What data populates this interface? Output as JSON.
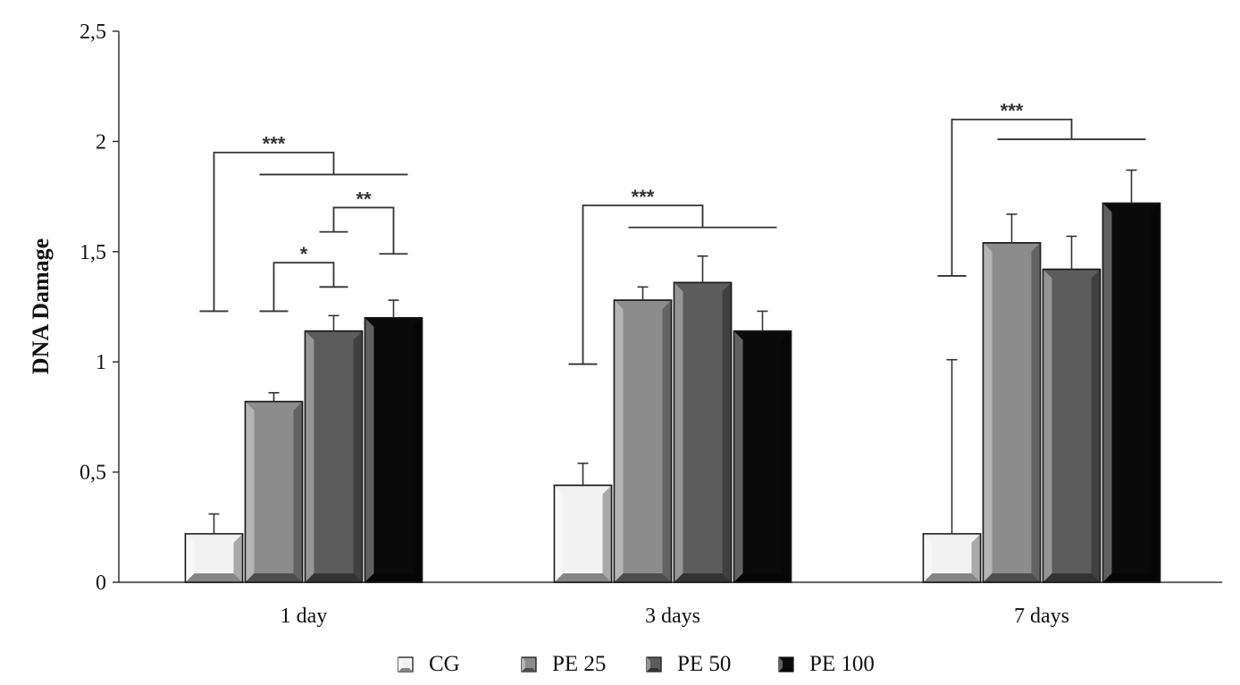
{
  "chart_data": {
    "type": "bar",
    "title": "",
    "xlabel": "",
    "ylabel": "DNA Damage",
    "ylim": [
      0,
      2.5
    ],
    "yticks": [
      {
        "value": 0,
        "label": "0"
      },
      {
        "value": 0.5,
        "label": "0,5"
      },
      {
        "value": 1,
        "label": "1"
      },
      {
        "value": 1.5,
        "label": "1,5"
      },
      {
        "value": 2,
        "label": "2"
      },
      {
        "value": 2.5,
        "label": "2,5"
      }
    ],
    "categories": [
      "1 day",
      "3 days",
      "7 days"
    ],
    "series": [
      {
        "name": "CG",
        "color": "#f2f2f2",
        "values": [
          0.22,
          0.44,
          0.22
        ],
        "errors": [
          0.09,
          0.1,
          0.79
        ]
      },
      {
        "name": "PE 25",
        "color": "#8c8c8c",
        "values": [
          0.82,
          1.28,
          1.54
        ],
        "errors": [
          0.04,
          0.06,
          0.13
        ]
      },
      {
        "name": "PE 50",
        "color": "#5c5c5c",
        "values": [
          1.14,
          1.36,
          1.42
        ],
        "errors": [
          0.07,
          0.12,
          0.15
        ]
      },
      {
        "name": "PE 100",
        "color": "#0a0a0a",
        "values": [
          1.2,
          1.14,
          1.72
        ],
        "errors": [
          0.08,
          0.09,
          0.15
        ]
      }
    ],
    "legend_position": "bottom",
    "grid": false,
    "annotations": [
      {
        "label": "***",
        "category": 0,
        "from": 0,
        "to": [
          1,
          3
        ],
        "left_y": 1.23,
        "top_y": 1.95,
        "right_y": 1.85
      },
      {
        "label": "*",
        "category": 0,
        "from": 1,
        "to": [
          2,
          2
        ],
        "left_y": 1.23,
        "top_y": 1.45,
        "right_y": 1.34
      },
      {
        "label": "**",
        "category": 0,
        "from": 2,
        "to": [
          3,
          3
        ],
        "left_y": 1.59,
        "top_y": 1.7,
        "right_y": 1.49
      },
      {
        "label": "***",
        "category": 1,
        "from": 0,
        "to": [
          1,
          3
        ],
        "left_y": 0.99,
        "top_y": 1.71,
        "right_y": 1.61
      },
      {
        "label": "***",
        "category": 2,
        "from": 0,
        "to": [
          1,
          3
        ],
        "left_y": 1.39,
        "top_y": 2.1,
        "right_y": 2.01
      }
    ]
  }
}
